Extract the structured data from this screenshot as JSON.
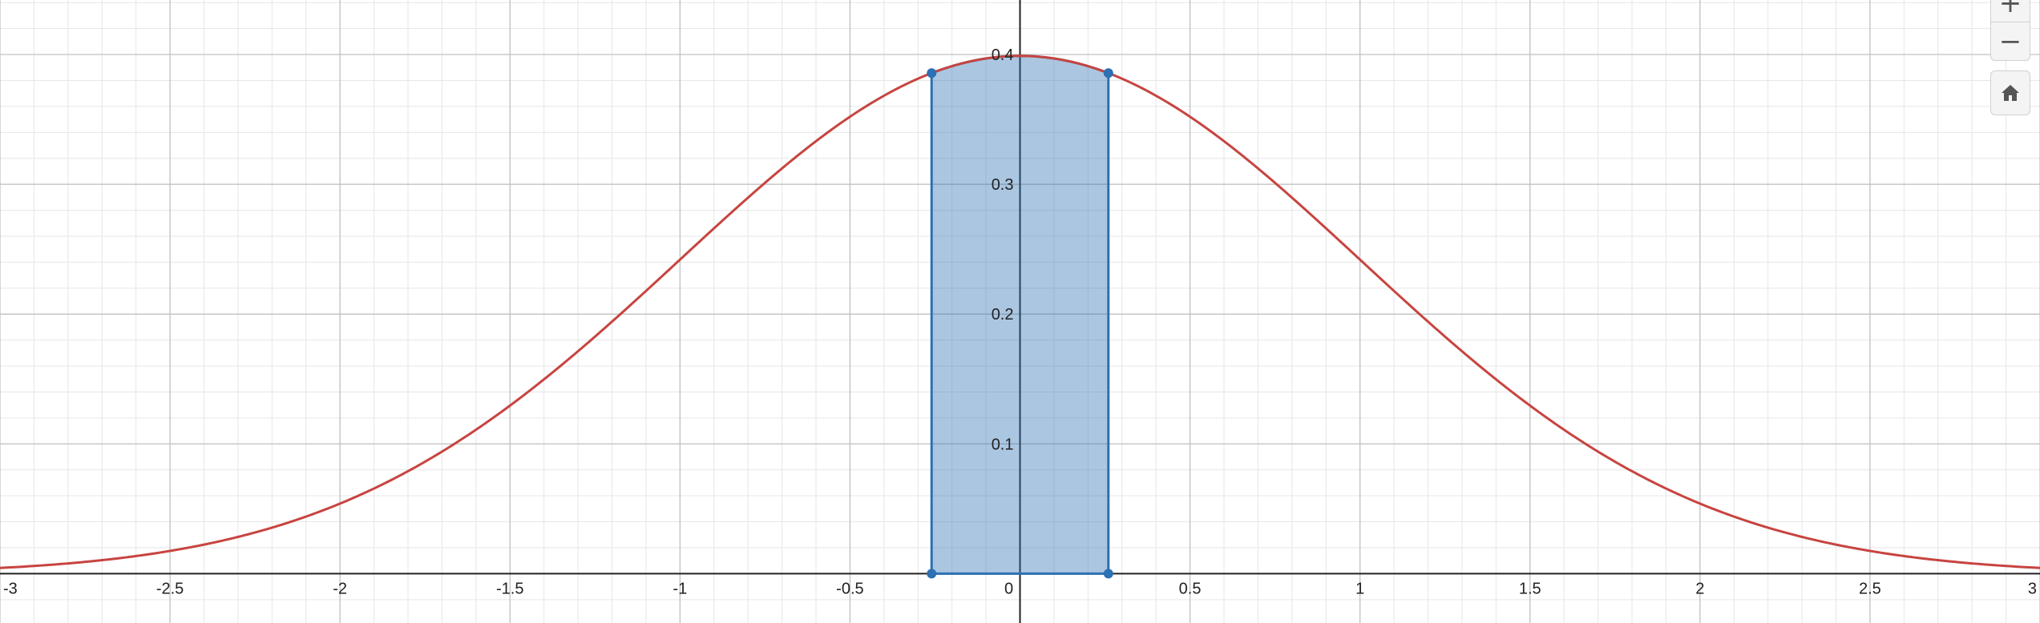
{
  "chart_data": {
    "type": "line",
    "title": "",
    "xlabel": "",
    "ylabel": "",
    "xlim": [
      -3,
      3
    ],
    "ylim": [
      -0.038,
      0.442
    ],
    "x_ticks": [
      "-3",
      "-2.5",
      "-2",
      "-1.5",
      "-1",
      "-0.5",
      "0",
      "0.5",
      "1",
      "1.5",
      "2",
      "2.5",
      "3"
    ],
    "y_ticks": [
      "0.1",
      "0.2",
      "0.3",
      "0.4"
    ],
    "grid": true,
    "series": [
      {
        "type": "line",
        "function": "standard-normal-pdf",
        "color": "#c74440",
        "x": [
          -3,
          -2.5,
          -2,
          -1.5,
          -1,
          -0.5,
          0,
          0.5,
          1,
          1.5,
          2,
          2.5,
          3
        ],
        "y": [
          0.0044,
          0.0175,
          0.054,
          0.1295,
          0.242,
          0.3521,
          0.3989,
          0.3521,
          0.242,
          0.1295,
          0.054,
          0.0175,
          0.0044
        ]
      },
      {
        "type": "area",
        "color": "#2d70b3",
        "x_from": -0.26,
        "x_to": 0.26,
        "corner_points": [
          [
            -0.26,
            0
          ],
          [
            -0.26,
            0.3857
          ],
          [
            0.26,
            0.3857
          ],
          [
            0.26,
            0
          ]
        ]
      }
    ]
  },
  "controls": {
    "zoom_in": "+",
    "zoom_out": "−",
    "home_icon": "home-icon"
  }
}
